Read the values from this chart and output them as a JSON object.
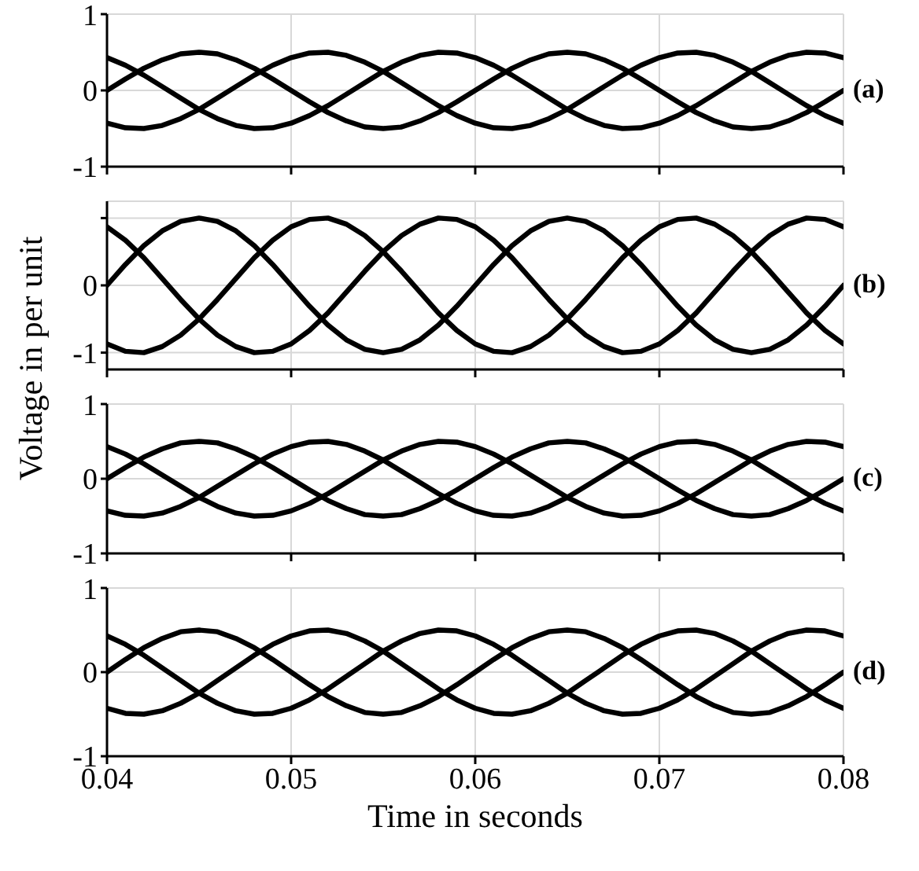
{
  "chart_data": [
    {
      "type": "line",
      "x": [
        0.04,
        0.041,
        0.042,
        0.043,
        0.044,
        0.045,
        0.046,
        0.047,
        0.048,
        0.049,
        0.05,
        0.051,
        0.052,
        0.053,
        0.054,
        0.055,
        0.056,
        0.057,
        0.058,
        0.059,
        0.06,
        0.061,
        0.062,
        0.063,
        0.064,
        0.065,
        0.066,
        0.067,
        0.068,
        0.069,
        0.07,
        0.071,
        0.072,
        0.073,
        0.074,
        0.075,
        0.076,
        0.077,
        0.078,
        0.079,
        0.08
      ],
      "series": [
        {
          "color": "#000000",
          "values": [
            0,
            0.15,
            0.29,
            0.4,
            0.48,
            0.5,
            0.48,
            0.4,
            0.29,
            0.15,
            0,
            -0.15,
            -0.29,
            -0.4,
            -0.48,
            -0.5,
            -0.48,
            -0.4,
            -0.29,
            -0.15,
            0,
            0.15,
            0.29,
            0.4,
            0.48,
            0.5,
            0.48,
            0.4,
            0.29,
            0.15,
            0,
            -0.15,
            -0.29,
            -0.4,
            -0.48,
            -0.5,
            -0.48,
            -0.4,
            -0.29,
            -0.15,
            0
          ]
        },
        {
          "color": "#000000",
          "values": [
            0.43,
            0.33,
            0.2,
            0.05,
            -0.1,
            -0.25,
            -0.37,
            -0.46,
            -0.5,
            -0.49,
            -0.43,
            -0.33,
            -0.2,
            -0.05,
            0.1,
            0.25,
            0.37,
            0.46,
            0.5,
            0.49,
            0.43,
            0.33,
            0.2,
            0.05,
            -0.1,
            -0.25,
            -0.37,
            -0.46,
            -0.5,
            -0.49,
            -0.43,
            -0.33,
            -0.2,
            -0.05,
            0.1,
            0.25,
            0.37,
            0.46,
            0.5,
            0.49,
            0.43
          ]
        },
        {
          "color": "#000000",
          "values": [
            -0.43,
            -0.49,
            -0.5,
            -0.46,
            -0.37,
            -0.25,
            -0.1,
            0.05,
            0.2,
            0.33,
            0.43,
            0.49,
            0.5,
            0.46,
            0.37,
            0.25,
            0.1,
            -0.05,
            -0.2,
            -0.33,
            -0.43,
            -0.49,
            -0.5,
            -0.46,
            -0.37,
            -0.25,
            -0.1,
            0.05,
            0.2,
            0.33,
            0.43,
            0.49,
            0.5,
            0.46,
            0.37,
            0.25,
            0.1,
            -0.05,
            -0.2,
            -0.33,
            -0.43
          ]
        }
      ],
      "xlim": [
        0.04,
        0.08
      ],
      "xticks": [
        0.04,
        0.05,
        0.06,
        0.07,
        0.08
      ],
      "ylim": [
        -1,
        1
      ],
      "yticks": [
        -1,
        0,
        1
      ],
      "grid": true,
      "tick_labels": "y",
      "annotations": [
        "(a)"
      ]
    },
    {
      "type": "line",
      "x": [
        0.04,
        0.041,
        0.042,
        0.043,
        0.044,
        0.045,
        0.046,
        0.047,
        0.048,
        0.049,
        0.05,
        0.051,
        0.052,
        0.053,
        0.054,
        0.055,
        0.056,
        0.057,
        0.058,
        0.059,
        0.06,
        0.061,
        0.062,
        0.063,
        0.064,
        0.065,
        0.066,
        0.067,
        0.068,
        0.069,
        0.07,
        0.071,
        0.072,
        0.073,
        0.074,
        0.075,
        0.076,
        0.077,
        0.078,
        0.079,
        0.08
      ],
      "series": [
        {
          "color": "#000000",
          "values": [
            0,
            0.31,
            0.59,
            0.81,
            0.95,
            1,
            0.95,
            0.81,
            0.59,
            0.31,
            0,
            -0.31,
            -0.59,
            -0.81,
            -0.95,
            -1,
            -0.95,
            -0.81,
            -0.59,
            -0.31,
            0,
            0.31,
            0.59,
            0.81,
            0.95,
            1,
            0.95,
            0.81,
            0.59,
            0.31,
            0,
            -0.31,
            -0.59,
            -0.81,
            -0.95,
            -1,
            -0.95,
            -0.81,
            -0.59,
            -0.31,
            0
          ]
        },
        {
          "color": "#000000",
          "values": [
            0.87,
            0.67,
            0.41,
            0.1,
            -0.21,
            -0.5,
            -0.74,
            -0.91,
            -1,
            -0.98,
            -0.87,
            -0.67,
            -0.41,
            -0.1,
            0.21,
            0.5,
            0.74,
            0.91,
            1,
            0.98,
            0.87,
            0.67,
            0.41,
            0.1,
            -0.21,
            -0.5,
            -0.74,
            -0.91,
            -1,
            -0.98,
            -0.87,
            -0.67,
            -0.41,
            -0.1,
            0.21,
            0.5,
            0.74,
            0.91,
            1,
            0.98,
            0.87
          ]
        },
        {
          "color": "#000000",
          "values": [
            -0.87,
            -0.98,
            -1,
            -0.91,
            -0.74,
            -0.5,
            -0.21,
            0.1,
            0.41,
            0.67,
            0.87,
            0.98,
            1,
            0.91,
            0.74,
            0.5,
            0.21,
            -0.1,
            -0.41,
            -0.67,
            -0.87,
            -0.98,
            -1,
            -0.91,
            -0.74,
            -0.5,
            -0.21,
            0.1,
            0.41,
            0.67,
            0.87,
            0.98,
            1,
            0.91,
            0.74,
            0.5,
            0.21,
            -0.1,
            -0.41,
            -0.67,
            -0.87
          ]
        }
      ],
      "xlim": [
        0.04,
        0.08
      ],
      "xticks": [
        0.04,
        0.05,
        0.06,
        0.07,
        0.08
      ],
      "ylim": [
        -1.25,
        1.25
      ],
      "yticks": [
        -1,
        0,
        {
          "value": 1,
          "label": null
        }
      ],
      "grid": true,
      "tick_labels": "y",
      "ylabel": "Voltage in per unit",
      "annotations": [
        "(b)"
      ]
    },
    {
      "type": "line",
      "x": [
        0.04,
        0.041,
        0.042,
        0.043,
        0.044,
        0.045,
        0.046,
        0.047,
        0.048,
        0.049,
        0.05,
        0.051,
        0.052,
        0.053,
        0.054,
        0.055,
        0.056,
        0.057,
        0.058,
        0.059,
        0.06,
        0.061,
        0.062,
        0.063,
        0.064,
        0.065,
        0.066,
        0.067,
        0.068,
        0.069,
        0.07,
        0.071,
        0.072,
        0.073,
        0.074,
        0.075,
        0.076,
        0.077,
        0.078,
        0.079,
        0.08
      ],
      "series": [
        {
          "color": "#000000",
          "values": [
            0,
            0.15,
            0.29,
            0.4,
            0.48,
            0.5,
            0.48,
            0.4,
            0.29,
            0.15,
            0,
            -0.15,
            -0.29,
            -0.4,
            -0.48,
            -0.5,
            -0.48,
            -0.4,
            -0.29,
            -0.15,
            0,
            0.15,
            0.29,
            0.4,
            0.48,
            0.5,
            0.48,
            0.4,
            0.29,
            0.15,
            0,
            -0.15,
            -0.29,
            -0.4,
            -0.48,
            -0.5,
            -0.48,
            -0.4,
            -0.29,
            -0.15,
            0
          ]
        },
        {
          "color": "#000000",
          "values": [
            0.43,
            0.33,
            0.2,
            0.05,
            -0.1,
            -0.25,
            -0.37,
            -0.46,
            -0.5,
            -0.49,
            -0.43,
            -0.33,
            -0.2,
            -0.05,
            0.1,
            0.25,
            0.37,
            0.46,
            0.5,
            0.49,
            0.43,
            0.33,
            0.2,
            0.05,
            -0.1,
            -0.25,
            -0.37,
            -0.46,
            -0.5,
            -0.49,
            -0.43,
            -0.33,
            -0.2,
            -0.05,
            0.1,
            0.25,
            0.37,
            0.46,
            0.5,
            0.49,
            0.43
          ]
        },
        {
          "color": "#000000",
          "values": [
            -0.43,
            -0.49,
            -0.5,
            -0.46,
            -0.37,
            -0.25,
            -0.1,
            0.05,
            0.2,
            0.33,
            0.43,
            0.49,
            0.5,
            0.46,
            0.37,
            0.25,
            0.1,
            -0.05,
            -0.2,
            -0.33,
            -0.43,
            -0.49,
            -0.5,
            -0.46,
            -0.37,
            -0.25,
            -0.1,
            0.05,
            0.2,
            0.33,
            0.43,
            0.49,
            0.5,
            0.46,
            0.37,
            0.25,
            0.1,
            -0.05,
            -0.2,
            -0.33,
            -0.43
          ]
        }
      ],
      "xlim": [
        0.04,
        0.08
      ],
      "xticks": [
        0.04,
        0.05,
        0.06,
        0.07,
        0.08
      ],
      "ylim": [
        -1,
        1
      ],
      "yticks": [
        -1,
        0,
        1
      ],
      "grid": true,
      "tick_labels": "y",
      "annotations": [
        "(c)"
      ]
    },
    {
      "type": "line",
      "x": [
        0.04,
        0.041,
        0.042,
        0.043,
        0.044,
        0.045,
        0.046,
        0.047,
        0.048,
        0.049,
        0.05,
        0.051,
        0.052,
        0.053,
        0.054,
        0.055,
        0.056,
        0.057,
        0.058,
        0.059,
        0.06,
        0.061,
        0.062,
        0.063,
        0.064,
        0.065,
        0.066,
        0.067,
        0.068,
        0.069,
        0.07,
        0.071,
        0.072,
        0.073,
        0.074,
        0.075,
        0.076,
        0.077,
        0.078,
        0.079,
        0.08
      ],
      "series": [
        {
          "color": "#000000",
          "values": [
            0,
            0.15,
            0.29,
            0.4,
            0.48,
            0.5,
            0.48,
            0.4,
            0.29,
            0.15,
            0,
            -0.15,
            -0.29,
            -0.4,
            -0.48,
            -0.5,
            -0.48,
            -0.4,
            -0.29,
            -0.15,
            0,
            0.15,
            0.29,
            0.4,
            0.48,
            0.5,
            0.48,
            0.4,
            0.29,
            0.15,
            0,
            -0.15,
            -0.29,
            -0.4,
            -0.48,
            -0.5,
            -0.48,
            -0.4,
            -0.29,
            -0.15,
            0
          ]
        },
        {
          "color": "#000000",
          "values": [
            0.43,
            0.33,
            0.2,
            0.05,
            -0.1,
            -0.25,
            -0.37,
            -0.46,
            -0.5,
            -0.49,
            -0.43,
            -0.33,
            -0.2,
            -0.05,
            0.1,
            0.25,
            0.37,
            0.46,
            0.5,
            0.49,
            0.43,
            0.33,
            0.2,
            0.05,
            -0.1,
            -0.25,
            -0.37,
            -0.46,
            -0.5,
            -0.49,
            -0.43,
            -0.33,
            -0.2,
            -0.05,
            0.1,
            0.25,
            0.37,
            0.46,
            0.5,
            0.49,
            0.43
          ]
        },
        {
          "color": "#000000",
          "values": [
            -0.43,
            -0.49,
            -0.5,
            -0.46,
            -0.37,
            -0.25,
            -0.1,
            0.05,
            0.2,
            0.33,
            0.43,
            0.49,
            0.5,
            0.46,
            0.37,
            0.25,
            0.1,
            -0.05,
            -0.2,
            -0.33,
            -0.43,
            -0.49,
            -0.5,
            -0.46,
            -0.37,
            -0.25,
            -0.1,
            0.05,
            0.2,
            0.33,
            0.43,
            0.49,
            0.5,
            0.46,
            0.37,
            0.25,
            0.1,
            -0.05,
            -0.2,
            -0.33,
            -0.43
          ]
        }
      ],
      "xlim": [
        0.04,
        0.08
      ],
      "xticks": [
        0.04,
        0.05,
        0.06,
        0.07,
        0.08
      ],
      "ylim": [
        -1,
        1
      ],
      "yticks": [
        -1,
        0,
        1
      ],
      "grid": true,
      "xlabel": "Time in seconds",
      "annotations": [
        "(d)"
      ]
    }
  ]
}
